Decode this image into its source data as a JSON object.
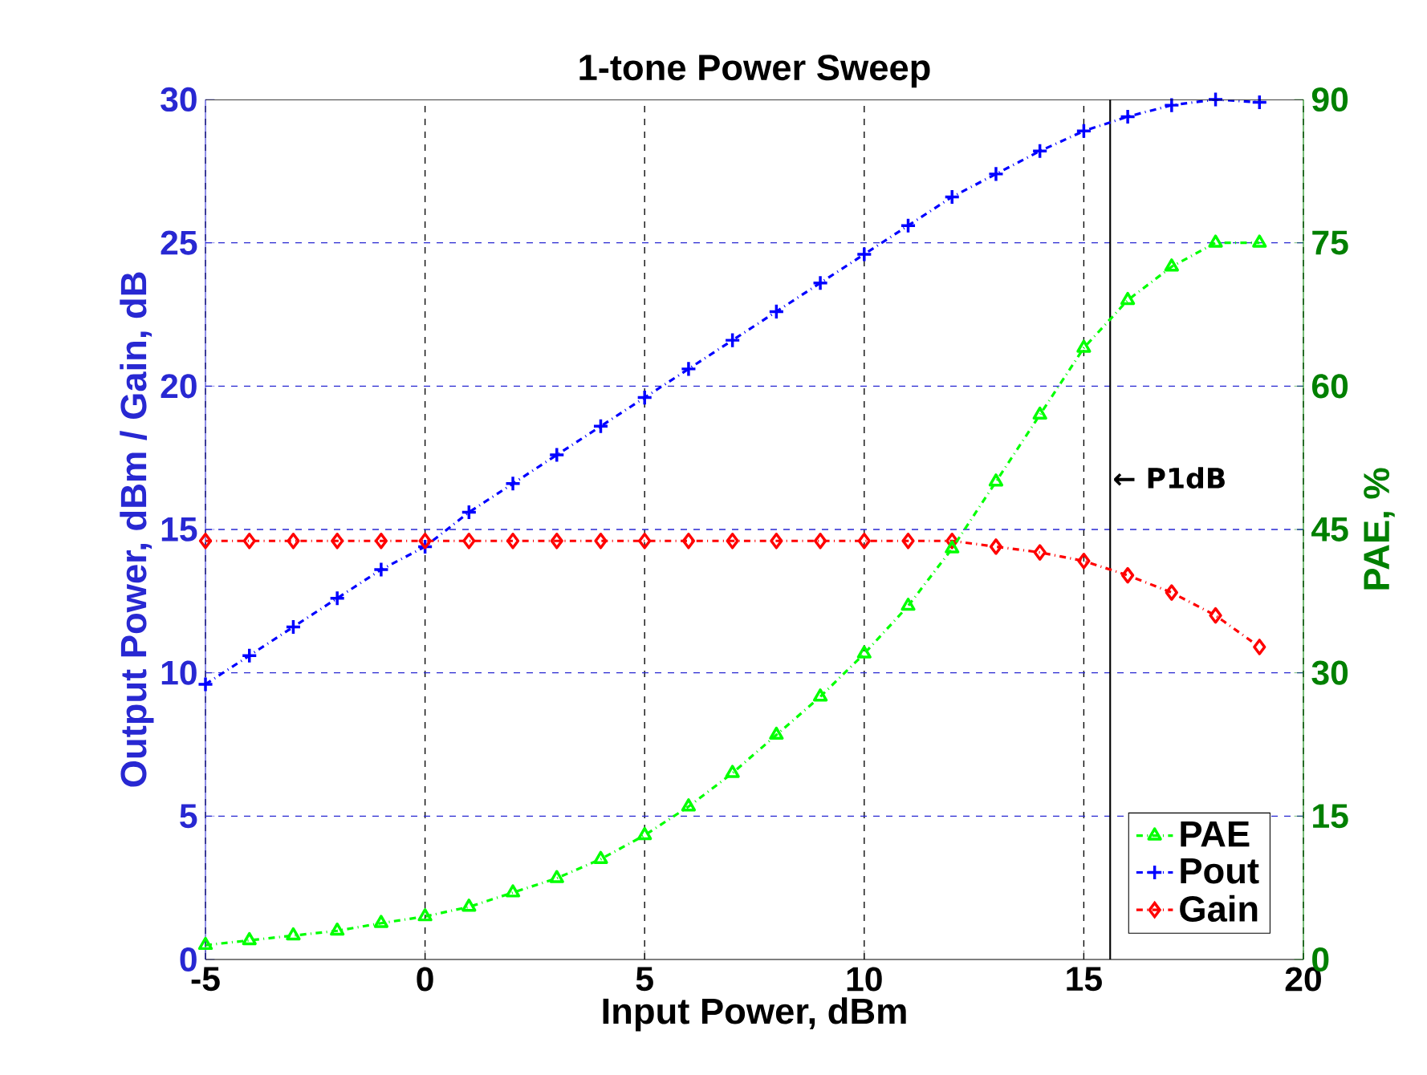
{
  "chart_data": {
    "type": "line",
    "title": "1-tone Power Sweep",
    "xlabel": "Input Power, dBm",
    "ylabel": "Output Power, dBm / Gain, dB",
    "y2label": "PAE, %",
    "x": [
      -5,
      -4,
      -3,
      -2,
      -1,
      0,
      1,
      2,
      3,
      4,
      5,
      6,
      7,
      8,
      9,
      10,
      11,
      12,
      13,
      14,
      15,
      16,
      17,
      18,
      19
    ],
    "series": [
      {
        "name": "PAE",
        "color": "#00ff00",
        "axis": "y2",
        "marker": "triangle",
        "values": [
          1.5,
          2,
          2.5,
          3,
          3.8,
          4.5,
          5.5,
          7,
          8.5,
          10.5,
          13,
          16,
          19.5,
          23.5,
          27.5,
          32,
          37,
          43,
          50,
          57,
          64,
          69,
          72.5,
          75,
          75
        ]
      },
      {
        "name": "Pout",
        "color": "#0000ff",
        "marker": "cross",
        "values": [
          9.6,
          10.6,
          11.6,
          12.6,
          13.6,
          14.4,
          15.6,
          16.6,
          17.6,
          18.6,
          19.6,
          20.6,
          21.6,
          22.6,
          23.6,
          24.6,
          25.6,
          26.6,
          27.4,
          28.2,
          28.9,
          29.4,
          29.8,
          30,
          29.9
        ]
      },
      {
        "name": "Gain",
        "color": "#ff0000",
        "marker": "diamond",
        "values": [
          14.6,
          14.6,
          14.6,
          14.6,
          14.6,
          14.6,
          14.6,
          14.6,
          14.6,
          14.6,
          14.6,
          14.6,
          14.6,
          14.6,
          14.6,
          14.6,
          14.6,
          14.6,
          14.4,
          14.2,
          13.9,
          13.4,
          12.8,
          12.0,
          10.9
        ]
      }
    ],
    "line_style": "dashdot",
    "xlim": [
      -5,
      20
    ],
    "xticks": [
      -5,
      0,
      5,
      10,
      15,
      20
    ],
    "ylim": [
      0,
      30
    ],
    "yticks": [
      0,
      5,
      10,
      15,
      20,
      25,
      30
    ],
    "y2lim": [
      0,
      90
    ],
    "y2ticks": [
      0,
      15,
      30,
      45,
      60,
      75,
      90
    ],
    "grid": true,
    "legend": "bottom right",
    "ref_lines": [
      {
        "axis": "x",
        "value": 15.6,
        "label": "← P1dB",
        "color": "#000000",
        "line_style": "solid"
      }
    ]
  }
}
